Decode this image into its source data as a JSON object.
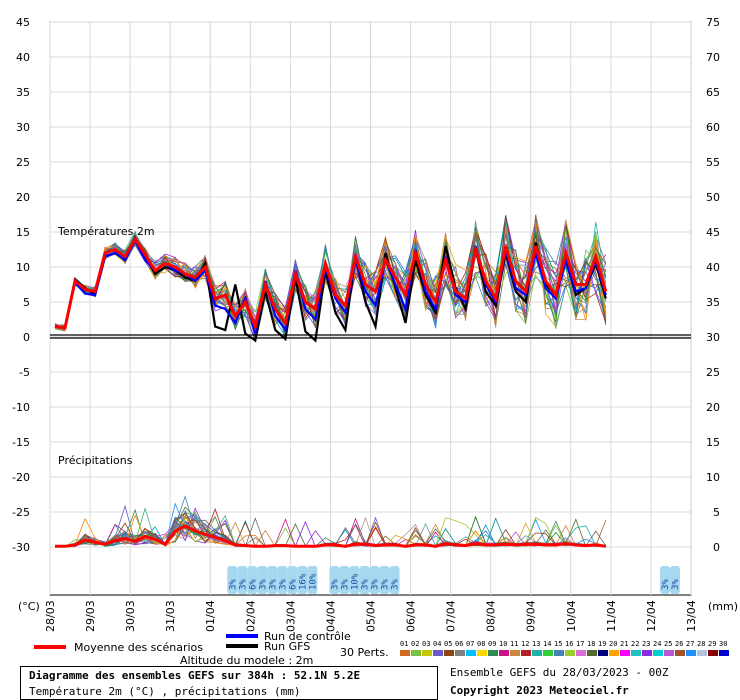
{
  "chart_data": {
    "type": "line",
    "title": "Diagramme des ensembles GEFS sur 384h : 52.1N 5.2E",
    "subtitle": "Température 2m (°C) , précipitations (mm)",
    "left_axis_unit": "(°C)",
    "right_axis_unit": "(mm)",
    "left_ticks": [
      45,
      40,
      35,
      30,
      25,
      20,
      15,
      10,
      5,
      0,
      -5,
      -10,
      -15,
      -20,
      -25,
      -30
    ],
    "right_ticks": [
      75,
      70,
      65,
      60,
      55,
      50,
      45,
      40,
      35,
      30,
      25,
      20,
      15,
      10,
      5,
      0
    ],
    "dates": [
      "28/03",
      "29/03",
      "30/03",
      "31/03",
      "01/04",
      "02/04",
      "03/04",
      "04/04",
      "05/04",
      "06/04",
      "07/04",
      "08/04",
      "09/04",
      "10/04",
      "11/04",
      "12/04",
      "13/04"
    ],
    "section_labels": {
      "temperature": "Températures 2m",
      "precipitation": "Précipitations"
    },
    "mean_temperature": [
      1.5,
      1.3,
      8.0,
      6.8,
      6.5,
      12.0,
      12.5,
      11.5,
      14.0,
      11.8,
      9.5,
      10.5,
      10.0,
      9.0,
      8.5,
      10.0,
      5.5,
      6.0,
      3.0,
      5.0,
      1.5,
      7.5,
      4.0,
      2.0,
      9.0,
      5.0,
      4.0,
      10.5,
      6.0,
      4.5,
      11.5,
      7.5,
      6.5,
      11.0,
      8.5,
      6.0,
      12.0,
      7.5,
      5.0,
      11.0,
      6.5,
      5.5,
      12.5,
      8.0,
      5.5,
      13.0,
      8.0,
      6.5,
      13.0,
      8.0,
      6.0,
      12.0,
      7.5,
      7.5,
      11.5,
      6.5
    ],
    "gfs_temperature": [
      1.5,
      1.3,
      8.2,
      7.0,
      6.0,
      11.5,
      12.0,
      11.0,
      14.2,
      11.5,
      9.0,
      10.0,
      9.5,
      8.5,
      8.0,
      10.5,
      1.5,
      1.0,
      7.5,
      0.5,
      -0.5,
      6.5,
      1.0,
      -0.3,
      8.5,
      0.8,
      -0.5,
      9.5,
      3.5,
      1.0,
      11.5,
      5.0,
      1.5,
      12.0,
      7.0,
      2.0,
      11.0,
      6.0,
      3.5,
      13.0,
      7.0,
      4.0,
      12.5,
      6.5,
      4.5,
      12.0,
      6.5,
      5.0,
      13.5,
      7.5,
      6.0,
      11.0,
      6.0,
      7.0,
      10.5,
      5.5
    ],
    "control_temperature": [
      1.5,
      1.3,
      7.8,
      6.2,
      6.0,
      11.5,
      12.0,
      11.0,
      13.8,
      11.0,
      9.5,
      10.5,
      9.5,
      9.0,
      8.0,
      9.5,
      4.5,
      4.0,
      2.0,
      5.5,
      0.5,
      8.0,
      3.0,
      1.0,
      9.5,
      4.0,
      2.5,
      10.0,
      5.5,
      3.5,
      11.0,
      6.5,
      4.5,
      11.0,
      7.5,
      4.0,
      12.5,
      6.5,
      4.0,
      11.5,
      6.0,
      5.0,
      13.0,
      7.5,
      5.0,
      12.5,
      7.0,
      6.0,
      12.0,
      7.0,
      5.5,
      11.0,
      6.5,
      7.0,
      11.0,
      6.0
    ],
    "mean_precipitation": [
      0.1,
      0.1,
      0.3,
      1.0,
      0.7,
      0.4,
      0.9,
      1.2,
      0.8,
      1.5,
      1.1,
      0.4,
      2.3,
      3.0,
      2.3,
      1.8,
      1.4,
      0.9,
      0.3,
      0.2,
      0.1,
      0.1,
      0.2,
      0.2,
      0.1,
      0.1,
      0.1,
      0.3,
      0.3,
      0.1,
      0.4,
      0.4,
      0.2,
      0.3,
      0.3,
      0.1,
      0.3,
      0.3,
      0.1,
      0.5,
      0.3,
      0.2,
      0.5,
      0.3,
      0.3,
      0.4,
      0.3,
      0.4,
      0.4,
      0.3,
      0.3,
      0.5,
      0.3,
      0.2,
      0.3,
      0.1
    ],
    "snow_probability": [
      {
        "date_index": 4.55,
        "label": "3%"
      },
      {
        "date_index": 4.8,
        "label": "3%"
      },
      {
        "date_index": 5.05,
        "label": "6%"
      },
      {
        "date_index": 5.3,
        "label": "3%"
      },
      {
        "date_index": 5.55,
        "label": "3%"
      },
      {
        "date_index": 5.8,
        "label": "3%"
      },
      {
        "date_index": 6.05,
        "label": "6%"
      },
      {
        "date_index": 6.3,
        "label": "16%"
      },
      {
        "date_index": 6.55,
        "label": "10%"
      },
      {
        "date_index": 7.1,
        "label": "3%"
      },
      {
        "date_index": 7.35,
        "label": "3%"
      },
      {
        "date_index": 7.6,
        "label": "10%"
      },
      {
        "date_index": 7.85,
        "label": "3%"
      },
      {
        "date_index": 8.1,
        "label": "3%"
      },
      {
        "date_index": 8.35,
        "label": "3%"
      },
      {
        "date_index": 8.6,
        "label": "3%"
      },
      {
        "date_index": 15.35,
        "label": "3%"
      },
      {
        "date_index": 15.6,
        "label": "3%"
      }
    ],
    "member_colors": [
      "#e07a2a",
      "#9a6b2f",
      "#7ac142",
      "#b8860b",
      "#0099cc",
      "#556b2f",
      "#20b2aa",
      "#8a2be2",
      "#1e90ff",
      "#c71585",
      "#2e8b57",
      "#d2691e",
      "#708090",
      "#6a5acd",
      "#3cb371",
      "#cd853f",
      "#4682b4",
      "#9acd32",
      "#bc8f8f",
      "#9932cc",
      "#008b8b",
      "#b22222",
      "#daa520",
      "#5f9ea0",
      "#ba55d3",
      "#228b22",
      "#4169e1",
      "#ff8c00",
      "#8b4513",
      "#696969"
    ],
    "perturbation_colors": [
      "#d2691e",
      "#7ac142",
      "#c8c800",
      "#6a5acd",
      "#8b4513",
      "#808080",
      "#00bfff",
      "#ffd700",
      "#2e8b57",
      "#c71585",
      "#cd853f",
      "#b22222",
      "#20b2aa",
      "#32cd32",
      "#4682b4",
      "#9acd32",
      "#da70d6",
      "#556b2f",
      "#000080",
      "#ffa500",
      "#ff00ff",
      "#20c0c0",
      "#8a2be2",
      "#00ced1",
      "#ba55d3",
      "#a0522d",
      "#1e90ff",
      "#b0c4de",
      "#8b0000",
      "#0000cd"
    ]
  },
  "legend": {
    "mean": "Moyenne des scénarios",
    "control": "Run de contrôle",
    "gfs": "Run GFS",
    "perts": "30 Perts.",
    "perturbations": [
      "01",
      "02",
      "03",
      "04",
      "05",
      "06",
      "07",
      "08",
      "09",
      "10",
      "11",
      "12",
      "13",
      "14",
      "15",
      "16",
      "17",
      "18",
      "19",
      "20",
      "21",
      "22",
      "23",
      "24",
      "25",
      "26",
      "27",
      "28",
      "29",
      "30"
    ],
    "altitude": "Altitude du modele : 2m"
  },
  "footer": {
    "title": "Diagramme des ensembles GEFS sur 384h : 52.1N 5.2E",
    "subtitle": "Température 2m (°C) , précipitations (mm)",
    "ensemble": "Ensemble GEFS du 28/03/2023 - 00Z",
    "copyright": "Copyright 2023 Meteociel.fr"
  },
  "colors": {
    "mean": "#ff0000",
    "control": "#0000ff",
    "gfs": "#000000",
    "snow": "#a8d8f0",
    "snow_text": "#1a4aa0"
  }
}
